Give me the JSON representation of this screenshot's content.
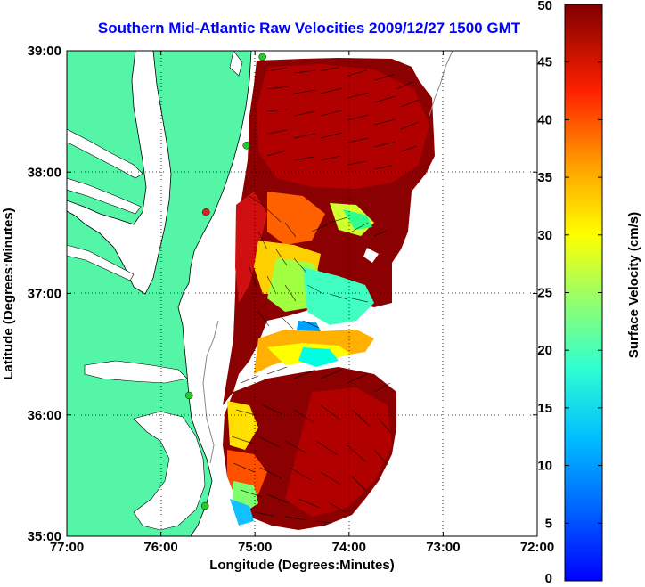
{
  "title": "Southern Mid-Atlantic Raw Velocities 2009/12/27 1500 GMT",
  "map": {
    "xlabel": "Longitude (Degrees:Minutes)",
    "ylabel": "Latitude (Degrees:Minutes)",
    "x_ticks": [
      "77:00",
      "76:00",
      "75:00",
      "74:00",
      "73:00",
      "72:00"
    ],
    "y_ticks": [
      "39:00",
      "38:00",
      "37:00",
      "36:00",
      "35:00"
    ],
    "lon_range": [
      -77,
      -72
    ],
    "lat_range": [
      35,
      39
    ],
    "land_color": "#55f5a8",
    "grid": "dotted",
    "stations": [
      {
        "lon": -74.92,
        "lat": 38.95,
        "color": "#22cc22"
      },
      {
        "lon": -75.09,
        "lat": 38.22,
        "color": "#22cc22"
      },
      {
        "lon": -75.52,
        "lat": 37.67,
        "color": "#dd2222"
      },
      {
        "lon": -75.7,
        "lat": 36.16,
        "color": "#22cc22"
      },
      {
        "lon": -75.53,
        "lat": 35.25,
        "color": "#22cc22"
      }
    ]
  },
  "colorbar": {
    "label": "Surface Velocity (cm/s)",
    "ticks": [
      "0",
      "5",
      "10",
      "15",
      "20",
      "25",
      "30",
      "35",
      "40",
      "45",
      "50"
    ],
    "range": [
      0,
      50
    ],
    "colormap": "jet"
  }
}
